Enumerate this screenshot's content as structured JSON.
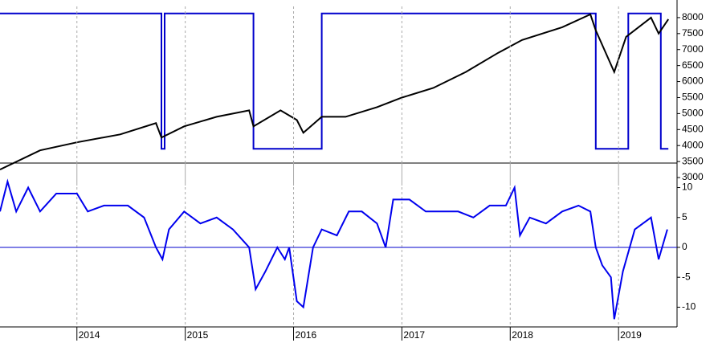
{
  "chart_data": [
    {
      "type": "line",
      "xlim": [
        2013.29,
        2019.54
      ],
      "ylim": [
        2750,
        8550
      ],
      "yticks": [
        3000,
        3500,
        4000,
        4500,
        5000,
        5500,
        6000,
        6500,
        7000,
        7500,
        8000
      ],
      "series": [
        {
          "color": "#0000cc",
          "x": [
            2013.29,
            2014.78,
            2014.78,
            2014.81,
            2014.81,
            2015.63,
            2015.63,
            2016.26,
            2016.26,
            2018.79,
            2018.79,
            2019.09,
            2019.09,
            2019.39,
            2019.39,
            2019.46
          ],
          "values": [
            8130,
            8130,
            3900,
            3900,
            8130,
            8130,
            3900,
            3900,
            8130,
            8130,
            3900,
            3900,
            8130,
            8130,
            3900,
            3900
          ]
        },
        {
          "color": "#000000",
          "x": [
            2013.29,
            2013.66,
            2014.0,
            2014.4,
            2014.73,
            2014.78,
            2014.99,
            2015.29,
            2015.59,
            2015.63,
            2015.88,
            2016.03,
            2016.09,
            2016.26,
            2016.48,
            2016.77,
            2017.0,
            2017.29,
            2017.59,
            2017.89,
            2018.11,
            2018.48,
            2018.74,
            2018.79,
            2018.96,
            2019.07,
            2019.3,
            2019.37,
            2019.46
          ],
          "values": [
            3250,
            3850,
            4100,
            4350,
            4700,
            4250,
            4600,
            4900,
            5100,
            4600,
            5100,
            4800,
            4400,
            4900,
            4900,
            5200,
            5500,
            5800,
            6300,
            6900,
            7300,
            7700,
            8100,
            7600,
            6300,
            7400,
            8000,
            7500,
            7950
          ]
        }
      ]
    },
    {
      "type": "line",
      "xlim": [
        2013.29,
        2019.54
      ],
      "ylim": [
        -13.3,
        14.1
      ],
      "yticks": [
        -10,
        -5,
        0,
        5,
        10
      ],
      "xticks": [
        2014,
        2015,
        2016,
        2017,
        2018,
        2019
      ],
      "reference_line": {
        "value": 0,
        "color": "#0000cc"
      },
      "series": [
        {
          "color": "#0000ee",
          "x": [
            2013.29,
            2013.36,
            2013.44,
            2013.55,
            2013.66,
            2013.81,
            2014.0,
            2014.1,
            2014.25,
            2014.47,
            2014.62,
            2014.73,
            2014.79,
            2014.85,
            2014.99,
            2015.14,
            2015.29,
            2015.44,
            2015.59,
            2015.65,
            2015.74,
            2015.85,
            2015.92,
            2015.96,
            2016.03,
            2016.09,
            2016.18,
            2016.26,
            2016.4,
            2016.51,
            2016.63,
            2016.77,
            2016.85,
            2016.92,
            2017.07,
            2017.22,
            2017.37,
            2017.52,
            2017.66,
            2017.81,
            2017.96,
            2018.04,
            2018.09,
            2018.18,
            2018.33,
            2018.48,
            2018.63,
            2018.74,
            2018.79,
            2018.85,
            2018.93,
            2018.96,
            2019.04,
            2019.15,
            2019.3,
            2019.37,
            2019.45
          ],
          "values": [
            6,
            11,
            6,
            10,
            6,
            9,
            9,
            6,
            7,
            7,
            5,
            0,
            -2,
            3,
            6,
            4,
            5,
            3,
            0,
            -7,
            -4,
            0,
            -2,
            0,
            -9,
            -10,
            0,
            3,
            2,
            6,
            6,
            4,
            0,
            8,
            8,
            6,
            6,
            6,
            5,
            7,
            7,
            10,
            2,
            5,
            4,
            6,
            7,
            6,
            0,
            -3,
            -5,
            -12,
            -4,
            3,
            5,
            -2,
            3
          ]
        }
      ]
    }
  ]
}
